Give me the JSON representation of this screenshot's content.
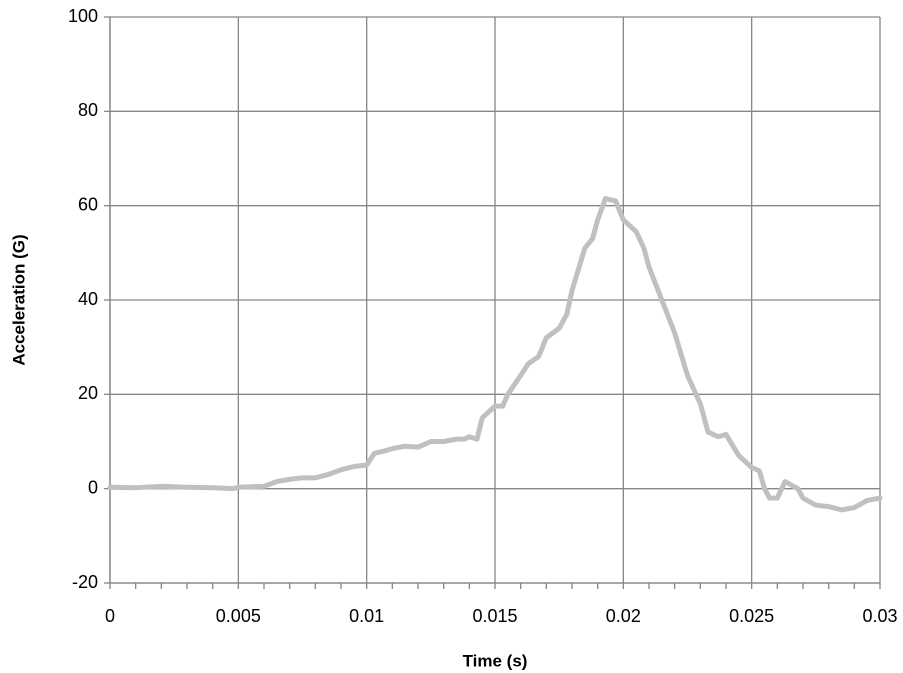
{
  "chart_data": {
    "type": "line",
    "x_label": "Time (s)",
    "y_label": "Acceleration (G)",
    "xlim": [
      0,
      0.03
    ],
    "xticks": [
      0,
      0.005,
      0.01,
      0.015,
      0.02,
      0.025,
      0.03
    ],
    "ylim": [
      -20,
      100
    ],
    "yticks": [
      -20,
      0,
      20,
      40,
      60,
      80,
      100
    ],
    "grid": true,
    "series": [
      {
        "color": "#c0c0c0",
        "x": [
          0,
          0.001,
          0.002,
          0.003,
          0.004,
          0.0048,
          0.005,
          0.006,
          0.0065,
          0.007,
          0.0075,
          0.008,
          0.0085,
          0.009,
          0.0095,
          0.01,
          0.0103,
          0.0107,
          0.011,
          0.0115,
          0.012,
          0.0125,
          0.013,
          0.0135,
          0.0138,
          0.014,
          0.0143,
          0.0145,
          0.015,
          0.0153,
          0.0155,
          0.016,
          0.0163,
          0.0167,
          0.017,
          0.0175,
          0.0178,
          0.018,
          0.0185,
          0.0188,
          0.019,
          0.0193,
          0.0197,
          0.02,
          0.0205,
          0.0208,
          0.021,
          0.0215,
          0.022,
          0.0225,
          0.023,
          0.0233,
          0.0237,
          0.024,
          0.0245,
          0.025,
          0.0253,
          0.0255,
          0.0257,
          0.026,
          0.0263,
          0.0268,
          0.027,
          0.0275,
          0.028,
          0.0285,
          0.029,
          0.0295,
          0.03
        ],
        "values": [
          0.3,
          0.2,
          0.5,
          0.3,
          0.2,
          0,
          0.3,
          0.5,
          1.5,
          2,
          2.3,
          2.3,
          3,
          4,
          4.7,
          5,
          7.5,
          8,
          8.5,
          9,
          8.8,
          10,
          10,
          10.5,
          10.5,
          11,
          10.5,
          15,
          17.5,
          17.5,
          20,
          24,
          26.5,
          28,
          32,
          34,
          37,
          42,
          51,
          53,
          57,
          61.5,
          61,
          57,
          54.5,
          51,
          47,
          40,
          33,
          24,
          18,
          12,
          11,
          11.5,
          7,
          4.5,
          3.8,
          0,
          -2,
          -2,
          1.5,
          0,
          -2,
          -3.5,
          -3.8,
          -4.5,
          -4,
          -2.5,
          -2
        ]
      }
    ]
  }
}
